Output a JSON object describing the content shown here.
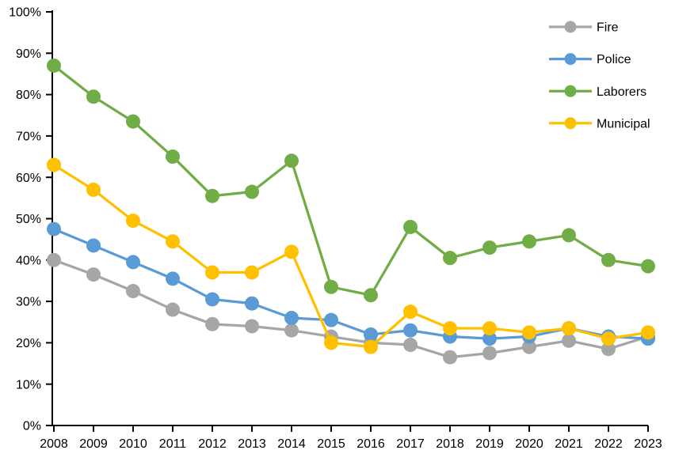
{
  "chart_data": {
    "type": "line",
    "title": "",
    "xlabel": "",
    "ylabel": "",
    "x": [
      2008,
      2009,
      2010,
      2011,
      2012,
      2013,
      2014,
      2015,
      2016,
      2017,
      2018,
      2019,
      2020,
      2021,
      2022,
      2023
    ],
    "series": [
      {
        "name": "Fire",
        "color": "#A6A6A6",
        "values": [
          40.0,
          36.5,
          32.5,
          28.0,
          24.5,
          24.0,
          23.0,
          21.5,
          20.0,
          19.5,
          16.5,
          17.5,
          19.0,
          20.5,
          18.5,
          21.5
        ]
      },
      {
        "name": "Police",
        "color": "#5B9BD5",
        "values": [
          47.5,
          43.5,
          39.5,
          35.5,
          30.5,
          29.5,
          26.0,
          25.5,
          22.0,
          23.0,
          21.5,
          21.0,
          21.5,
          23.5,
          21.5,
          21.0
        ]
      },
      {
        "name": "Laborers",
        "color": "#70AD47",
        "values": [
          87.0,
          79.5,
          73.5,
          65.0,
          55.5,
          56.5,
          64.0,
          33.5,
          31.5,
          48.0,
          40.5,
          43.0,
          44.5,
          46.0,
          40.0,
          38.5
        ]
      },
      {
        "name": "Municipal",
        "color": "#FFC000",
        "values": [
          63.0,
          57.0,
          49.5,
          44.5,
          37.0,
          37.0,
          42.0,
          20.0,
          19.0,
          27.5,
          23.5,
          23.5,
          22.5,
          23.5,
          21.0,
          22.5
        ]
      }
    ],
    "ylim": [
      0,
      100
    ],
    "y_tick_step": 10,
    "y_tick_labels": [
      "0%",
      "10%",
      "20%",
      "30%",
      "40%",
      "50%",
      "60%",
      "70%",
      "80%",
      "90%",
      "100%"
    ],
    "x_tick_labels": [
      "2008",
      "2009",
      "2010",
      "2011",
      "2012",
      "2013",
      "2014",
      "2015",
      "2016",
      "2017",
      "2018",
      "2019",
      "2020",
      "2021",
      "2022",
      "2023"
    ],
    "legend_position": "top-right",
    "legend_labels": [
      "Fire",
      "Police",
      "Laborers",
      "Municipal"
    ],
    "grid": false,
    "axis_color": "#000000",
    "text_color": "#000000",
    "background": "#FFFFFF"
  }
}
